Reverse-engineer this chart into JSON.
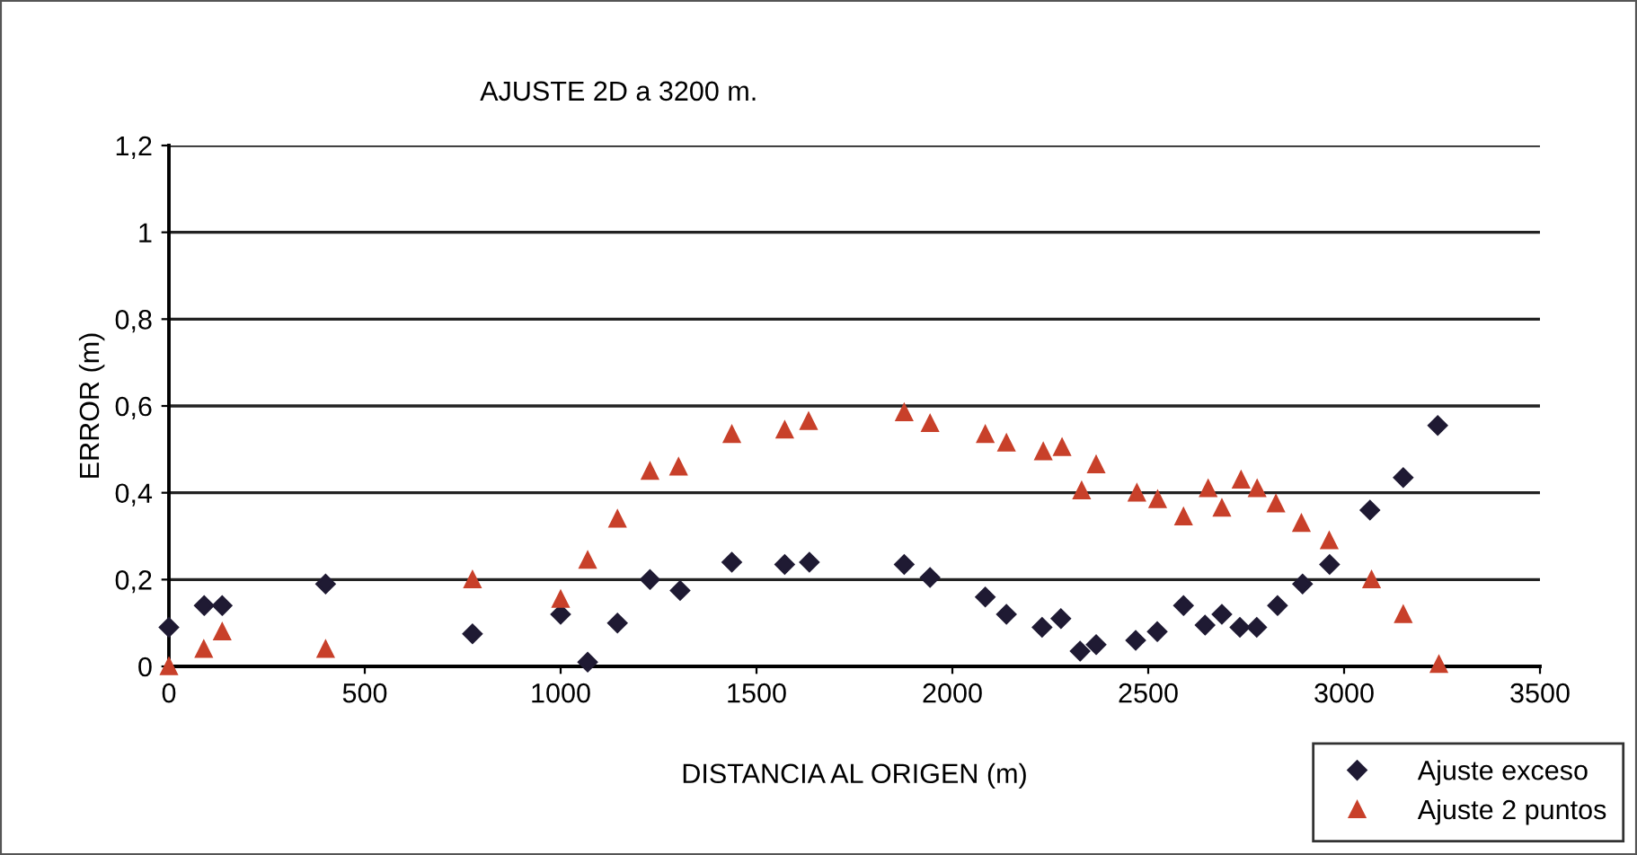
{
  "chart_data": {
    "type": "scatter",
    "title": "AJUSTE 2D a 3200 m.",
    "xlabel": "DISTANCIA AL ORIGEN (m)",
    "ylabel": "ERROR (m)",
    "xlim": [
      0,
      3500
    ],
    "xticks": [
      0,
      500,
      1000,
      1500,
      2000,
      2500,
      3000,
      3500
    ],
    "ylim": [
      0,
      1.2
    ],
    "yticks": [
      0,
      {
        "value": 0.2,
        "label": "0,2"
      },
      {
        "value": 0.4,
        "label": "0,4"
      },
      {
        "value": 0.6,
        "label": "0,6"
      },
      {
        "value": 0.8,
        "label": "0,8"
      },
      1,
      {
        "value": 1.2,
        "label": "1,2"
      }
    ],
    "grid": "y",
    "legend": "bottom right",
    "series": [
      {
        "name": "Ajuste exceso",
        "color": "#1f1a33",
        "marker": "diamond",
        "x": [
          0,
          90,
          136,
          400,
          775,
          1000,
          1069,
          1145,
          1228,
          1305,
          1437,
          1572,
          1635,
          1877,
          1943,
          2084,
          2138,
          2229,
          2277,
          2326,
          2367,
          2468,
          2523,
          2590,
          2645,
          2688,
          2734,
          2777,
          2830,
          2894,
          2963,
          3066,
          3151,
          3239
        ],
        "values": [
          0.09,
          0.14,
          0.14,
          0.19,
          0.075,
          0.12,
          0.01,
          0.1,
          0.2,
          0.175,
          0.24,
          0.235,
          0.24,
          0.235,
          0.205,
          0.16,
          0.12,
          0.09,
          0.11,
          0.035,
          0.05,
          0.06,
          0.08,
          0.14,
          0.095,
          0.12,
          0.09,
          0.09,
          0.14,
          0.19,
          0.235,
          0.36,
          0.435,
          0.555
        ]
      },
      {
        "name": "Ajuste 2 puntos",
        "color": "#c8402a",
        "marker": "triangle",
        "x": [
          0,
          89,
          136,
          400,
          775,
          1000,
          1069,
          1145,
          1228,
          1301,
          1437,
          1572,
          1633,
          1877,
          1943,
          2084,
          2138,
          2232,
          2280,
          2330,
          2367,
          2471,
          2524,
          2590,
          2653,
          2688,
          2737,
          2778,
          2826,
          2891,
          2962,
          3070,
          3151,
          3242
        ],
        "values": [
          0.0,
          0.04,
          0.08,
          0.04,
          0.2,
          0.155,
          0.245,
          0.34,
          0.45,
          0.46,
          0.535,
          0.545,
          0.565,
          0.585,
          0.56,
          0.535,
          0.515,
          0.495,
          0.505,
          0.405,
          0.465,
          0.4,
          0.385,
          0.345,
          0.41,
          0.365,
          0.43,
          0.41,
          0.375,
          0.33,
          0.29,
          0.2,
          0.12,
          0.005
        ]
      }
    ]
  }
}
